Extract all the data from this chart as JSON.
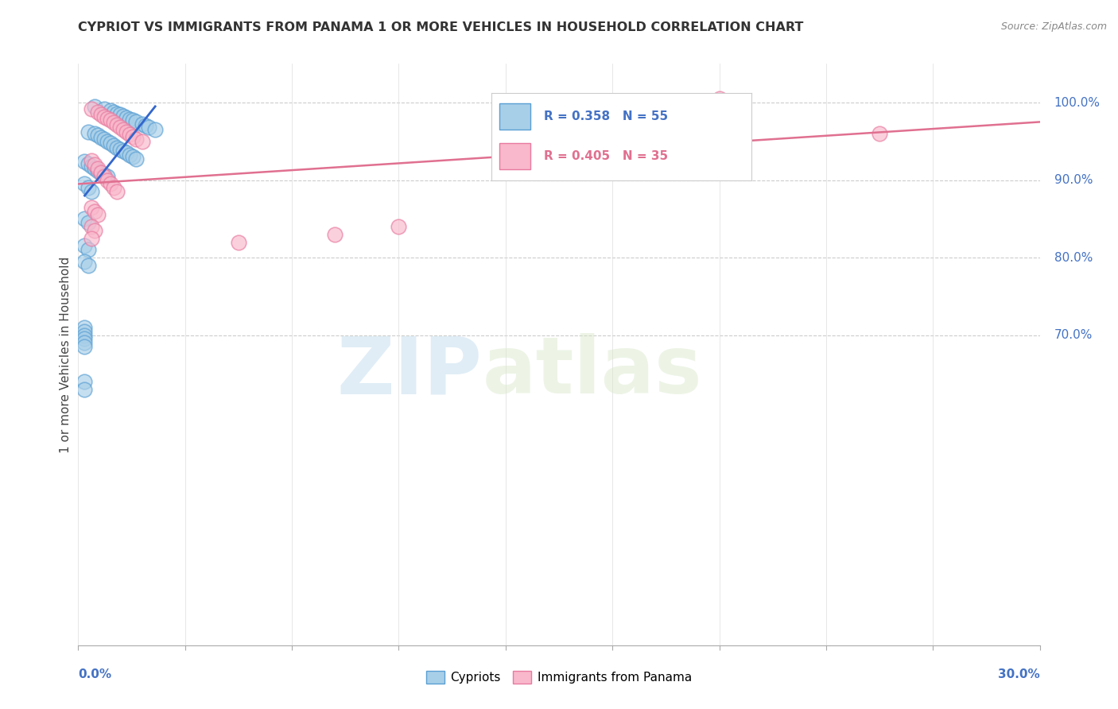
{
  "title": "CYPRIOT VS IMMIGRANTS FROM PANAMA 1 OR MORE VEHICLES IN HOUSEHOLD CORRELATION CHART",
  "source": "Source: ZipAtlas.com",
  "ylabel": "1 or more Vehicles in Household",
  "legend_blue_r": "0.358",
  "legend_blue_n": "55",
  "legend_pink_r": "0.405",
  "legend_pink_n": "35",
  "legend_label_blue": "Cypriots",
  "legend_label_pink": "Immigrants from Panama",
  "blue_color": "#a8cfe8",
  "pink_color": "#f9b8cb",
  "blue_edge_color": "#5a9fd4",
  "pink_edge_color": "#e87aa0",
  "blue_line_color": "#3366cc",
  "pink_line_color": "#e07090",
  "watermark_zip": "ZIP",
  "watermark_atlas": "atlas",
  "xlim": [
    0.0,
    30.0
  ],
  "ylim": [
    30.0,
    105.0
  ],
  "ygrid_lines": [
    70.0,
    80.0,
    90.0,
    100.0
  ],
  "right_ytick_labels": [
    "70.0%",
    "80.0%",
    "90.0%",
    "100.0%"
  ],
  "right_ytick_vals": [
    70.0,
    80.0,
    90.0,
    100.0
  ],
  "blue_x": [
    0.5,
    0.8,
    1.0,
    1.1,
    1.2,
    1.3,
    1.4,
    1.5,
    1.6,
    1.7,
    1.8,
    2.0,
    2.1,
    2.2,
    2.4,
    0.3,
    0.5,
    0.6,
    0.7,
    0.8,
    0.9,
    1.0,
    1.1,
    1.2,
    1.3,
    1.4,
    1.5,
    1.6,
    1.7,
    1.8,
    0.2,
    0.3,
    0.4,
    0.5,
    0.6,
    0.7,
    0.8,
    0.9,
    0.2,
    0.3,
    0.4,
    0.2,
    0.3,
    0.2,
    0.3,
    0.2,
    0.3,
    0.2,
    0.2,
    0.2,
    0.2,
    0.2,
    0.2,
    0.2,
    0.2
  ],
  "blue_y": [
    99.5,
    99.2,
    99.0,
    98.8,
    98.6,
    98.5,
    98.3,
    98.1,
    97.9,
    97.7,
    97.5,
    97.2,
    97.0,
    96.8,
    96.5,
    96.2,
    96.0,
    95.8,
    95.5,
    95.3,
    95.0,
    94.8,
    94.5,
    94.2,
    94.0,
    93.8,
    93.5,
    93.2,
    93.0,
    92.7,
    92.4,
    92.1,
    91.8,
    91.5,
    91.2,
    90.9,
    90.7,
    90.5,
    89.5,
    89.0,
    88.5,
    85.0,
    84.5,
    81.5,
    81.0,
    79.5,
    79.0,
    71.0,
    70.5,
    70.0,
    69.5,
    69.0,
    68.5,
    64.0,
    63.0
  ],
  "pink_x": [
    0.4,
    0.6,
    0.7,
    0.8,
    0.9,
    1.0,
    1.1,
    1.2,
    1.3,
    1.4,
    1.5,
    1.6,
    1.7,
    1.8,
    2.0,
    0.4,
    0.5,
    0.6,
    0.7,
    0.8,
    0.9,
    1.0,
    1.1,
    1.2,
    0.4,
    0.5,
    0.6,
    0.4,
    0.5,
    0.4,
    5.0,
    8.0,
    10.0,
    20.0,
    25.0
  ],
  "pink_y": [
    99.2,
    98.8,
    98.5,
    98.2,
    98.0,
    97.7,
    97.4,
    97.1,
    96.8,
    96.5,
    96.2,
    95.9,
    95.6,
    95.3,
    95.0,
    92.5,
    92.0,
    91.5,
    91.0,
    90.5,
    90.0,
    89.5,
    89.0,
    88.5,
    86.5,
    86.0,
    85.5,
    84.0,
    83.5,
    82.5,
    82.0,
    83.0,
    84.0,
    100.5,
    96.0
  ],
  "blue_trend_x": [
    0.2,
    2.4
  ],
  "blue_trend_y": [
    88.0,
    99.5
  ],
  "pink_trend_x": [
    0.0,
    30.0
  ],
  "pink_trend_y": [
    89.5,
    97.5
  ]
}
